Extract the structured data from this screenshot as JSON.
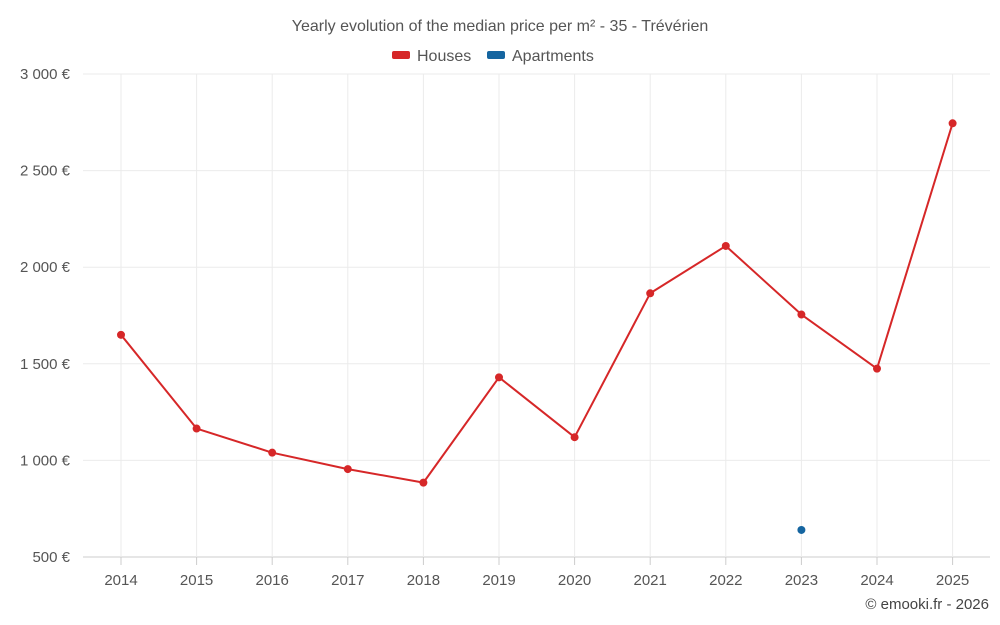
{
  "chart_data": {
    "type": "line",
    "title": "Yearly evolution of the median price per m² - 35 - Trévérien",
    "categories": [
      "2014",
      "2015",
      "2016",
      "2017",
      "2018",
      "2019",
      "2020",
      "2021",
      "2022",
      "2023",
      "2024",
      "2025"
    ],
    "series": [
      {
        "name": "Houses",
        "color": "#d62728",
        "values": [
          1650,
          1165,
          1040,
          955,
          885,
          1430,
          1120,
          1865,
          2110,
          1755,
          1475,
          2745
        ]
      },
      {
        "name": "Apartments",
        "color": "#1565a0",
        "values": [
          null,
          null,
          null,
          null,
          null,
          null,
          null,
          null,
          null,
          640,
          null,
          null
        ]
      }
    ],
    "ylim": [
      500,
      3000
    ],
    "yticks": [
      500,
      1000,
      1500,
      2000,
      2500,
      3000
    ],
    "ytick_labels": [
      "500 €",
      "1 000 €",
      "1 500 €",
      "2 000 €",
      "2 500 €",
      "3 000 €"
    ],
    "xlabel": "",
    "ylabel": "",
    "grid": true,
    "legend_position": "top-center"
  },
  "credit": "© emooki.fr - 2026"
}
